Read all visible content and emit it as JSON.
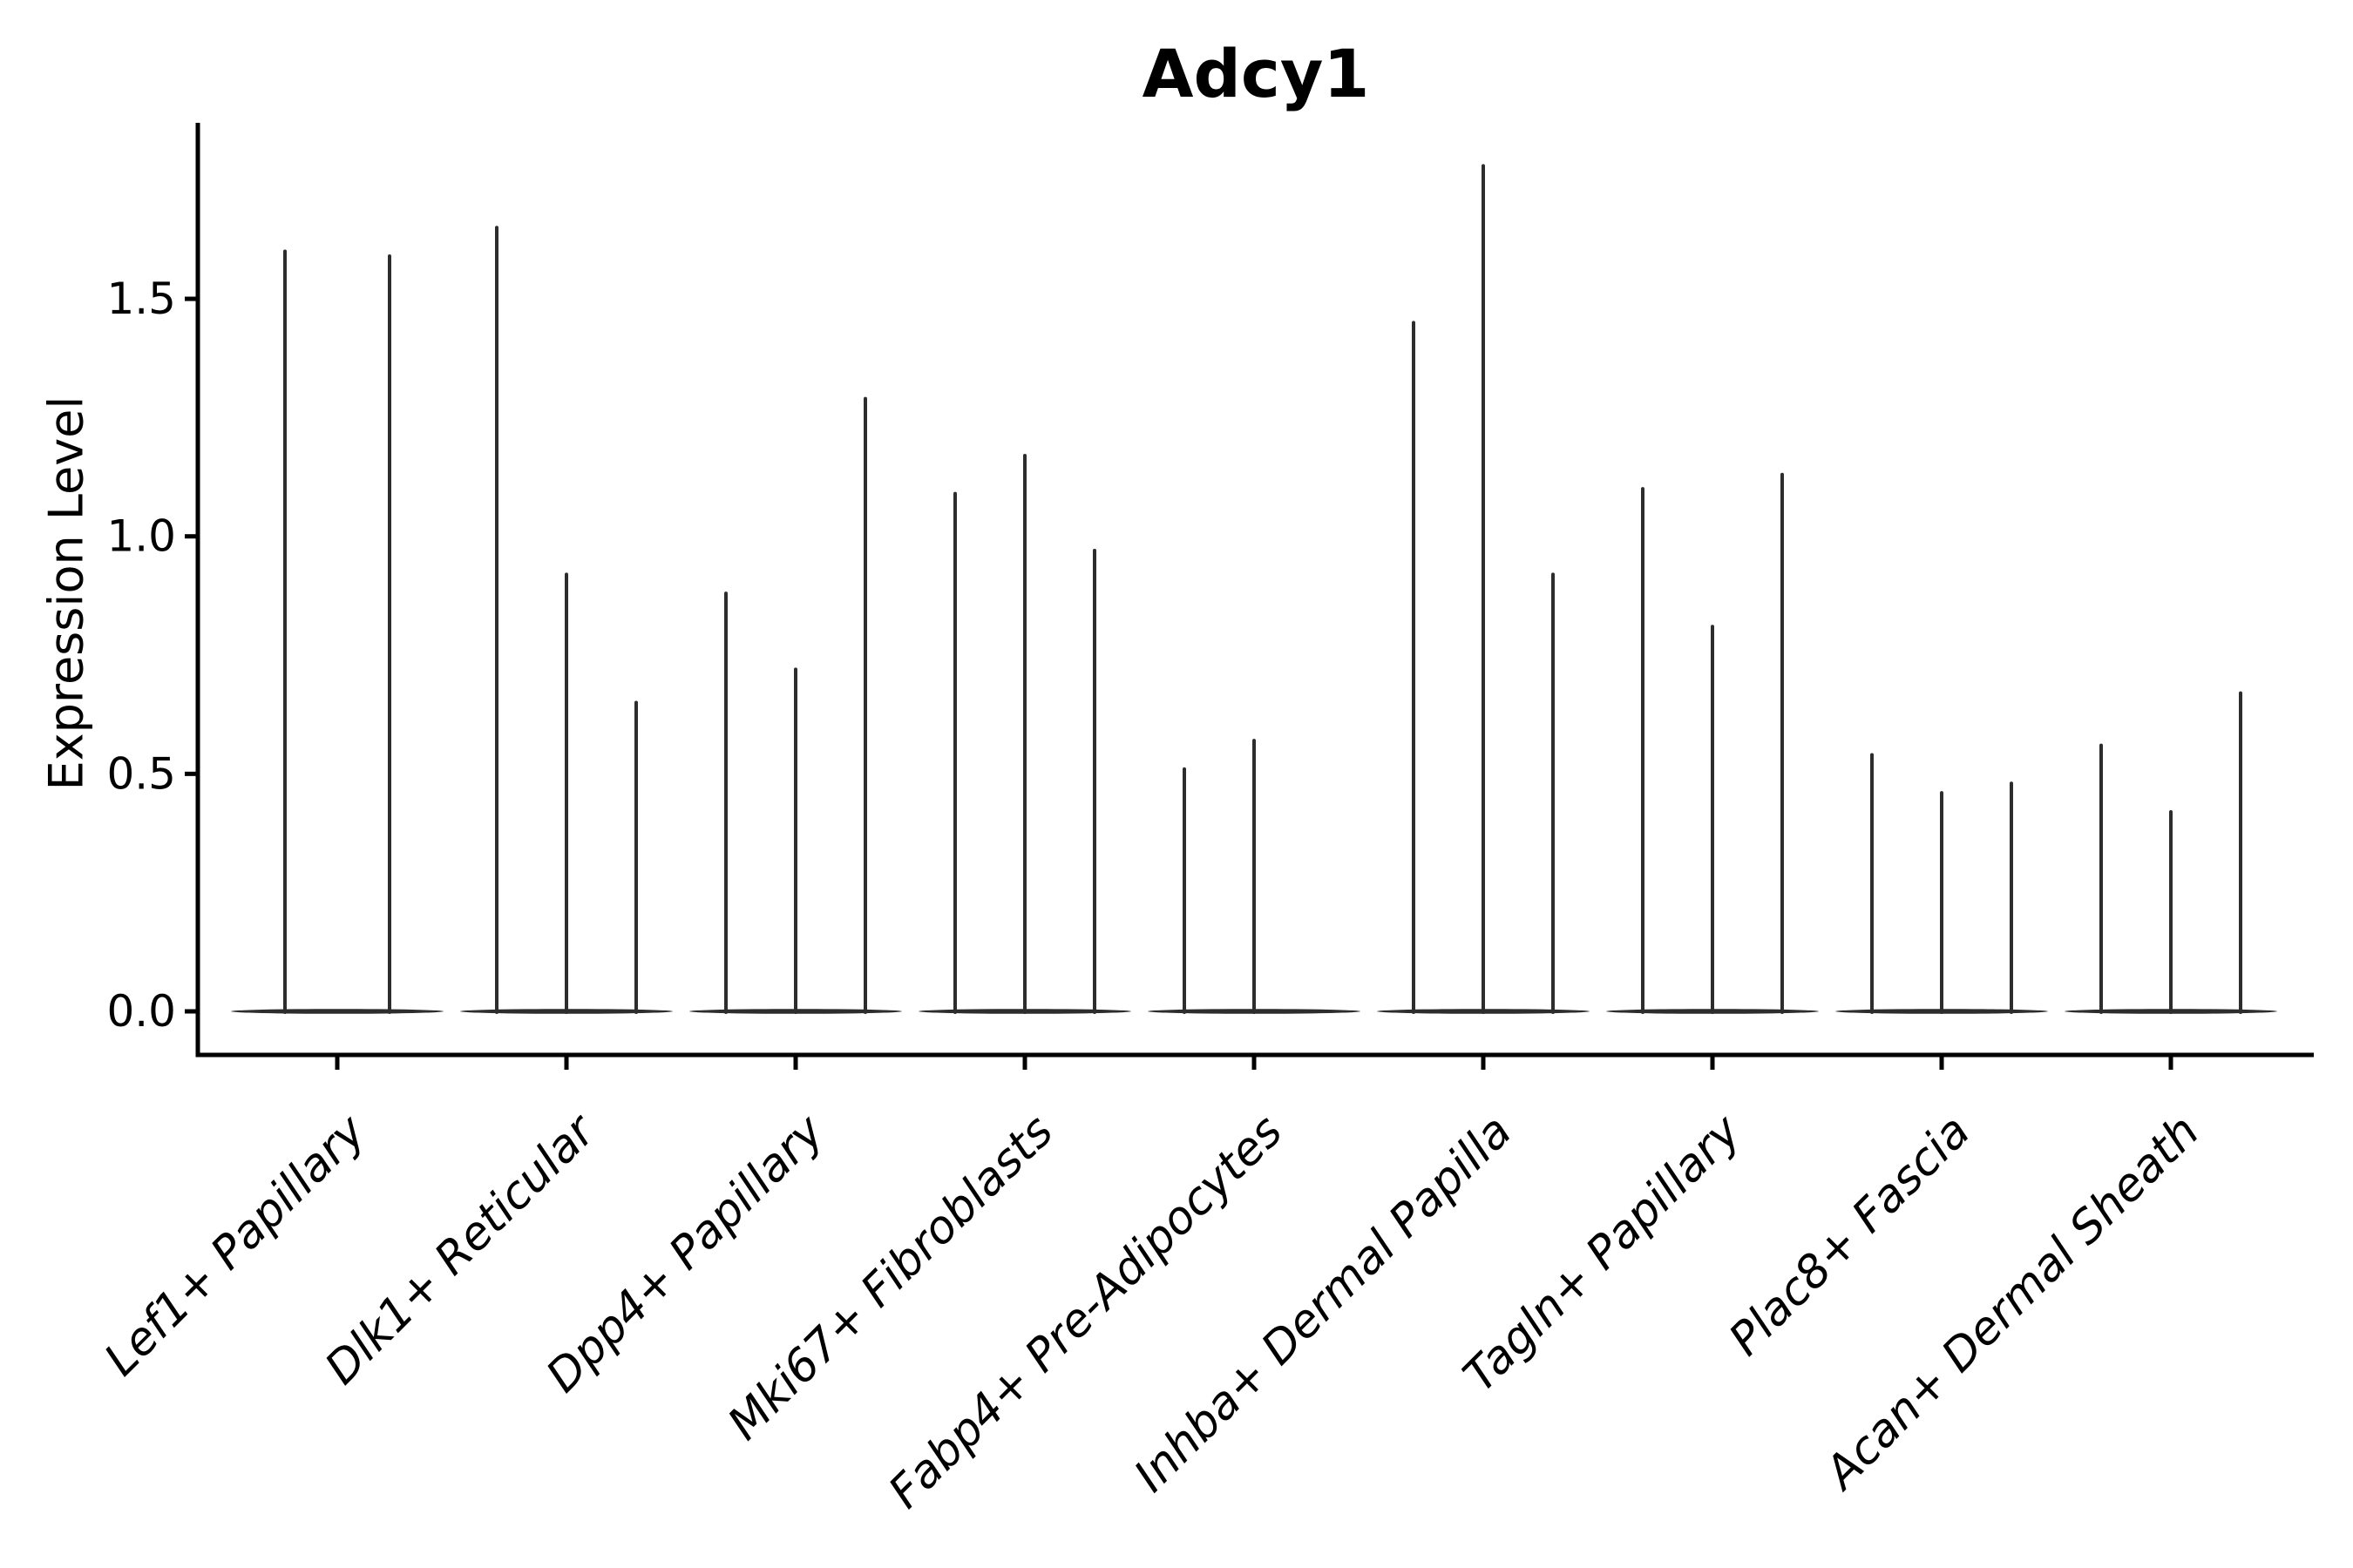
{
  "chart_data": {
    "type": "violin",
    "title": "Adcy1",
    "ylabel": "Expression Level",
    "xlabel": "",
    "yticks": [
      0.0,
      0.5,
      1.0,
      1.5
    ],
    "ylim": [
      -0.09,
      1.87
    ],
    "grid": false,
    "legend": "none",
    "violin_color": "#2d2d2d",
    "axis_color": "#000000",
    "categories": [
      "Lef1+ Papillary",
      "Dlk1+ Reticular",
      "Dpp4+ Papillary",
      "Mki67+ Fibroblasts",
      "Fabp4+ Pre-Adipocytes",
      "Inhba+ Dermal Papilla",
      "Tagln+ Papillary",
      "Plac8+ Fascia",
      "Acan+ Dermal Sheath"
    ],
    "groups": [
      {
        "label": "Lef1+ Papillary",
        "violins": [
          {
            "offset": -60,
            "peak": 1.6
          },
          {
            "offset": 60,
            "peak": 1.59
          }
        ]
      },
      {
        "label": "Dlk1+ Reticular",
        "violins": [
          {
            "offset": -80,
            "peak": 1.65
          },
          {
            "offset": 0,
            "peak": 0.92
          },
          {
            "offset": 80,
            "peak": 0.65
          }
        ]
      },
      {
        "label": "Dpp4+ Papillary",
        "violins": [
          {
            "offset": -80,
            "peak": 0.88
          },
          {
            "offset": 0,
            "peak": 0.72
          },
          {
            "offset": 80,
            "peak": 1.29
          }
        ]
      },
      {
        "label": "Mki67+ Fibroblasts",
        "violins": [
          {
            "offset": -80,
            "peak": 1.09
          },
          {
            "offset": 0,
            "peak": 1.17
          },
          {
            "offset": 80,
            "peak": 0.97
          }
        ]
      },
      {
        "label": "Fabp4+ Pre-Adipocytes",
        "violins": [
          {
            "offset": -80,
            "peak": 0.51
          },
          {
            "offset": 0,
            "peak": 0.57
          },
          {
            "offset": 80,
            "peak": 0.0
          }
        ]
      },
      {
        "label": "Inhba+ Dermal Papilla",
        "violins": [
          {
            "offset": -80,
            "peak": 1.45
          },
          {
            "offset": 0,
            "peak": 1.78
          },
          {
            "offset": 80,
            "peak": 0.92
          }
        ]
      },
      {
        "label": "Tagln+ Papillary",
        "violins": [
          {
            "offset": -80,
            "peak": 1.1
          },
          {
            "offset": 0,
            "peak": 0.81
          },
          {
            "offset": 80,
            "peak": 1.13
          }
        ]
      },
      {
        "label": "Plac8+ Fascia",
        "violins": [
          {
            "offset": -80,
            "peak": 0.54
          },
          {
            "offset": 0,
            "peak": 0.46
          },
          {
            "offset": 80,
            "peak": 0.48
          }
        ]
      },
      {
        "label": "Acan+ Dermal Sheath",
        "violins": [
          {
            "offset": -80,
            "peak": 0.56
          },
          {
            "offset": 0,
            "peak": 0.42
          },
          {
            "offset": 80,
            "peak": 0.67
          }
        ]
      }
    ]
  }
}
